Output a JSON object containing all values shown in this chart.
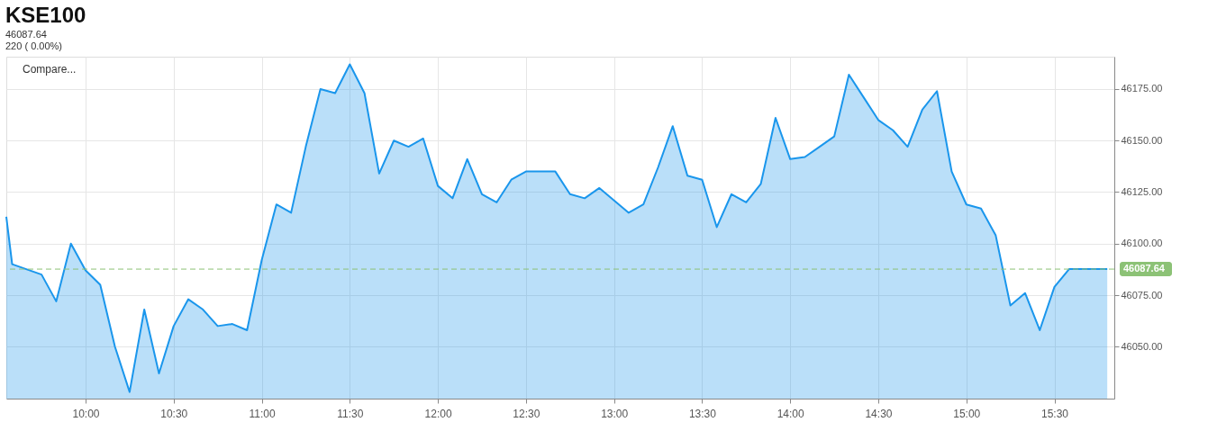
{
  "chart_data": {
    "type": "area",
    "title": "KSE100",
    "subtitle": "46087.64\n220 ( 0.00%)",
    "annotations": [
      "Compare..."
    ],
    "x": [
      9.55,
      9.5833,
      9.75,
      9.8333,
      9.9167,
      10,
      10.0833,
      10.1667,
      10.25,
      10.3333,
      10.4167,
      10.5,
      10.5833,
      10.6667,
      10.75,
      10.8333,
      10.9167,
      11,
      11.0833,
      11.1667,
      11.25,
      11.3333,
      11.4167,
      11.5,
      11.5833,
      11.6667,
      11.75,
      11.8333,
      11.9167,
      12,
      12.0833,
      12.1667,
      12.25,
      12.3333,
      12.4167,
      12.5,
      12.5833,
      12.6667,
      12.75,
      12.8333,
      12.9167,
      13,
      13.0833,
      13.1667,
      13.25,
      13.3333,
      13.4167,
      13.5,
      13.5833,
      13.6667,
      13.75,
      13.8333,
      13.9167,
      14,
      14.0833,
      14.1667,
      14.25,
      14.3333,
      14.4167,
      14.5,
      14.5833,
      14.6667,
      14.75,
      14.8333,
      14.9167,
      15,
      15.0833,
      15.1667,
      15.25,
      15.3333,
      15.4167,
      15.5,
      15.5833,
      15.8
    ],
    "series": [
      {
        "color": "#1a96ec",
        "values": [
          46113,
          46090,
          46085,
          46072,
          46100,
          46087,
          46080,
          46050,
          46028,
          46068,
          46037,
          46060,
          46073,
          46068,
          46060,
          46061,
          46058,
          46092,
          46119,
          46115,
          46147,
          46175,
          46173,
          46187,
          46173,
          46134,
          46150,
          46147,
          46151,
          46128,
          46122,
          46141,
          46124,
          46120,
          46131,
          46135,
          46135,
          46135,
          46124,
          46122,
          46127,
          46121,
          46115,
          46119,
          46137,
          46157,
          46133,
          46131,
          46108,
          46124,
          46120,
          46129,
          46161,
          46141,
          46142,
          46147,
          46152,
          46182,
          46171,
          46160,
          46155,
          46147,
          46165,
          46174,
          46135,
          46119,
          46117,
          46104,
          46070,
          46076,
          46058,
          46079,
          46087.64,
          46087.64
        ]
      }
    ],
    "xlim": [
      9.55,
      15.84
    ],
    "ylim": [
      46024.8,
      46190.7
    ],
    "xticks": [
      {
        "value": 10,
        "label": "10:00"
      },
      {
        "value": 10.5,
        "label": "10:30"
      },
      {
        "value": 11,
        "label": "11:00"
      },
      {
        "value": 11.5,
        "label": "11:30"
      },
      {
        "value": 12,
        "label": "12:00"
      },
      {
        "value": 12.5,
        "label": "12:30"
      },
      {
        "value": 13,
        "label": "13:00"
      },
      {
        "value": 13.5,
        "label": "13:30"
      },
      {
        "value": 14,
        "label": "14:00"
      },
      {
        "value": 14.5,
        "label": "14:30"
      },
      {
        "value": 15,
        "label": "15:00"
      },
      {
        "value": 15.5,
        "label": "15:30"
      }
    ],
    "yticks": [
      {
        "value": 46050,
        "label": "46050.00"
      },
      {
        "value": 46075,
        "label": "46075.00"
      },
      {
        "value": 46100,
        "label": "46100.00"
      },
      {
        "value": 46125,
        "label": "46125.00"
      },
      {
        "value": 46150,
        "label": "46150.00"
      },
      {
        "value": 46175,
        "label": "46175.00"
      }
    ],
    "ref_lines": [
      {
        "axis": "y",
        "value": 46087.64,
        "label": "46087.64",
        "color": "#8cc276",
        "line_style": "dashed"
      }
    ],
    "grid": true,
    "line_style": "solid",
    "marker": "none"
  }
}
